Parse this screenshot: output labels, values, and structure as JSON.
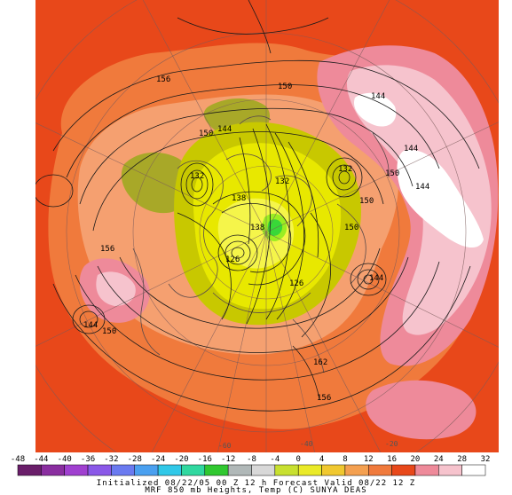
{
  "map": {
    "contour_labels": [
      {
        "text": "156"
      },
      {
        "text": "150"
      },
      {
        "text": "144"
      },
      {
        "text": "150"
      },
      {
        "text": "144"
      },
      {
        "text": "144"
      },
      {
        "text": "132"
      },
      {
        "text": "150"
      },
      {
        "text": "132"
      },
      {
        "text": "132"
      },
      {
        "text": "138"
      },
      {
        "text": "150"
      },
      {
        "text": "138"
      },
      {
        "text": "126"
      },
      {
        "text": "126"
      },
      {
        "text": "144"
      },
      {
        "text": "156"
      },
      {
        "text": "144"
      },
      {
        "text": "150"
      },
      {
        "text": "162"
      },
      {
        "text": "156"
      },
      {
        "text": "150"
      },
      {
        "text": "144"
      }
    ],
    "meridian_labels": [
      "-60",
      "-40",
      "-20"
    ],
    "colors": {
      "background": "#e8481a",
      "warm": "#f07a3c",
      "light": "#f5a070",
      "pink": "#ee8a9a",
      "lightpink": "#f6c3cd",
      "white": "#ffffff",
      "yellow_dark": "#c8c800",
      "yellow": "#e8e800",
      "yellow_light": "#f5f54a",
      "olive": "#a8a828",
      "green": "#38d838",
      "lime": "#9aee22"
    }
  },
  "colorbar": {
    "ticks": [
      "-48",
      "-44",
      "-40",
      "-36",
      "-32",
      "-28",
      "-24",
      "-20",
      "-16",
      "-12",
      "-8",
      "-4",
      "0",
      "4",
      "8",
      "12",
      "16",
      "20",
      "24",
      "28",
      "32"
    ],
    "colors": [
      "#6a1e6a",
      "#8a2ea0",
      "#a040d0",
      "#8a58e8",
      "#6a7af0",
      "#4aa0f0",
      "#30c8e8",
      "#30d8a0",
      "#30c830",
      "#b0b8b8",
      "#d8d8d8",
      "#c8e030",
      "#eaea28",
      "#f0c830",
      "#f4a050",
      "#f07a3c",
      "#e8481a",
      "#ee8a9a",
      "#f6c3cd",
      "#ffffff"
    ]
  },
  "caption": {
    "line1": "Initialized 08/22/05 00 Z  12 h Forecast Valid 08/22 12 Z",
    "line2": "MRF 850 mb Heights, Temp (C)         SUNYA DEAS"
  }
}
